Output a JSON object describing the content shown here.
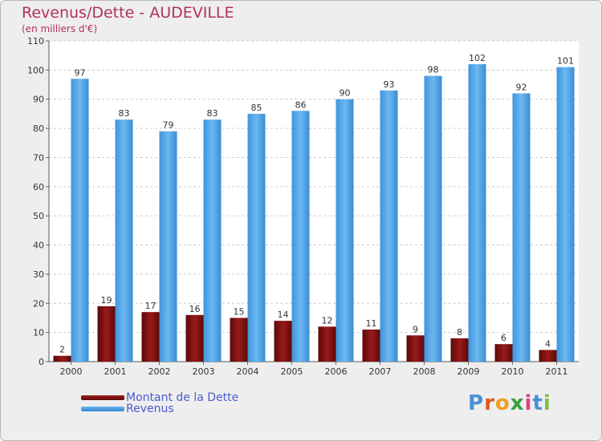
{
  "header": {
    "title": "Revenus/Dette - AUDEVILLE",
    "subtitle": "(en milliers d'€)"
  },
  "legend": {
    "items": [
      {
        "label": "Montant de la Dette",
        "color": "#7a1010"
      },
      {
        "label": "Revenus",
        "color": "#4aa0e6"
      }
    ]
  },
  "logo": {
    "text": "Proxiti",
    "colors": [
      "#4a90d9",
      "#e05a20",
      "#f0a020",
      "#3aa040",
      "#e04080",
      "#4a90d9",
      "#80c040"
    ]
  },
  "chart_data": {
    "type": "bar",
    "title": "Revenus/Dette - AUDEVILLE",
    "subtitle": "(en milliers d'€)",
    "categories": [
      "2000",
      "2001",
      "2002",
      "2003",
      "2004",
      "2005",
      "2006",
      "2007",
      "2008",
      "2009",
      "2010",
      "2011"
    ],
    "series": [
      {
        "name": "Montant de la Dette",
        "color": "#7a1010",
        "values": [
          2,
          19,
          17,
          16,
          15,
          14,
          12,
          11,
          9,
          8,
          6,
          4
        ]
      },
      {
        "name": "Revenus",
        "color": "#4aa0e6",
        "values": [
          97,
          83,
          79,
          83,
          85,
          86,
          90,
          93,
          98,
          102,
          92,
          101
        ]
      }
    ],
    "ylim": [
      0,
      110
    ],
    "yticks": [
      0,
      10,
      20,
      30,
      40,
      50,
      60,
      70,
      80,
      90,
      100,
      110
    ],
    "grid": true,
    "legend_position": "bottom-left"
  }
}
